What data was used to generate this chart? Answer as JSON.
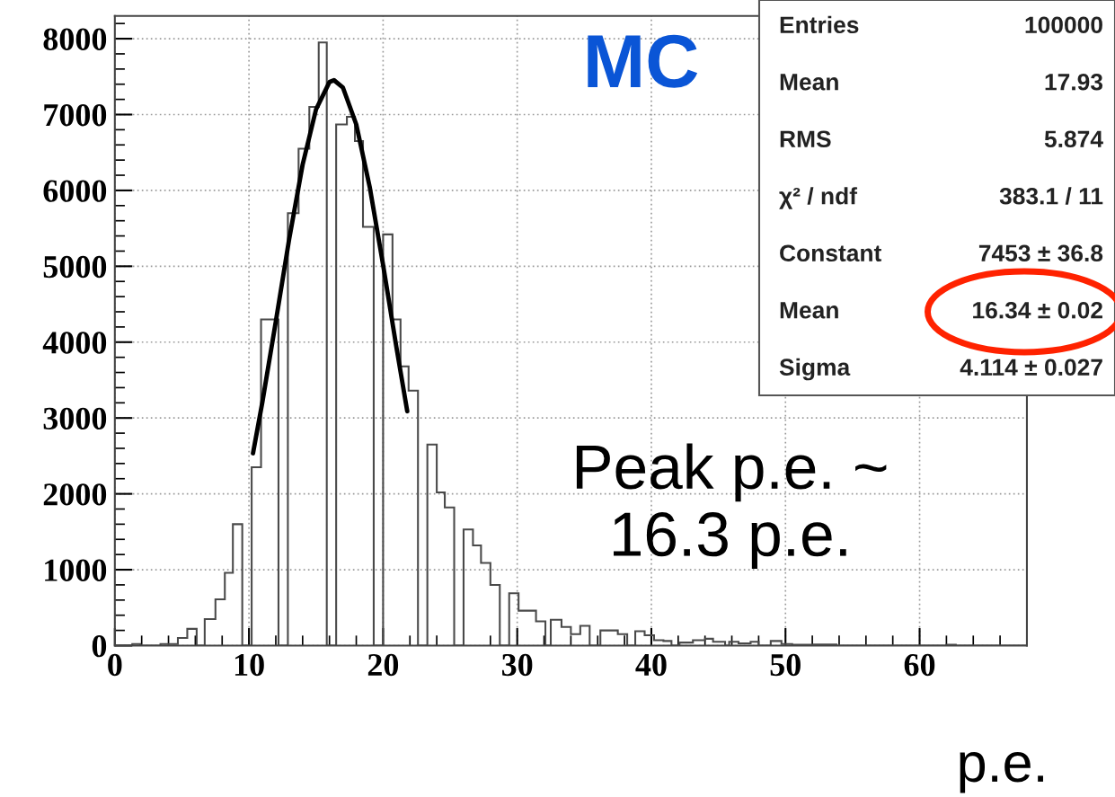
{
  "chart_data": {
    "type": "histogram",
    "bins": [
      0,
      1.3,
      1.9,
      3.4,
      4.7,
      5.4,
      6.1,
      6.7,
      7.5,
      8.2,
      8.8,
      9.5,
      10.2,
      10.9,
      12.2,
      12.9,
      13.7,
      14.5,
      15.2,
      15.8,
      16.5,
      17.3,
      17.9,
      18.5,
      19.3,
      20.0,
      20.7,
      21.3,
      21.9,
      22.6,
      23.3,
      24.0,
      24.6,
      25.3,
      26.0,
      26.7,
      27.3,
      28.0,
      28.7,
      29.4,
      30.1,
      31.4,
      32.1,
      32.5,
      33.3,
      34.0,
      34.7,
      35.4,
      36.2,
      37.5,
      38.2,
      38.8,
      39.5,
      40.2,
      40.9,
      41.5,
      42.1,
      43.1,
      44.0,
      44.6,
      45.5,
      45.8,
      46.5,
      47.4,
      48.0,
      48.9,
      49.7,
      50.5,
      52.1,
      53.8,
      62.0,
      62.7,
      68
    ],
    "values": [
      0,
      20,
      0,
      20,
      100,
      220,
      0,
      350,
      610,
      960,
      1600,
      0,
      2350,
      4300,
      0,
      5700,
      6550,
      7100,
      7950,
      0,
      6870,
      6970,
      6650,
      5520,
      0,
      5420,
      4300,
      3680,
      3360,
      0,
      2650,
      2020,
      1820,
      0,
      1530,
      1320,
      1090,
      800,
      0,
      690,
      460,
      320,
      0,
      340,
      245,
      150,
      260,
      0,
      200,
      150,
      0,
      190,
      135,
      70,
      60,
      0,
      40,
      70,
      90,
      50,
      0,
      50,
      30,
      50,
      0,
      60,
      20,
      10,
      15,
      0,
      10,
      0
    ],
    "color": "#4a4a4a",
    "series": [
      {
        "type": "line",
        "color": "#000000",
        "x": [
          10.3,
          11,
          12,
          13,
          14,
          15,
          16,
          16.34,
          17,
          18,
          19,
          20,
          21,
          21.8
        ],
        "values": [
          2535,
          3209,
          4272,
          5360,
          6340,
          7068,
          7428,
          7453,
          7358,
          6870,
          6047,
          5017,
          3924,
          3089
        ]
      }
    ],
    "xlabel": "p.e.",
    "xlim": [
      0,
      68
    ],
    "xticks": [
      0,
      10,
      20,
      30,
      40,
      50,
      60
    ],
    "ylim": [
      0,
      8300
    ],
    "yticks": [
      0,
      1000,
      2000,
      3000,
      4000,
      5000,
      6000,
      7000,
      8000
    ],
    "grid": true,
    "annotations": [
      "MC",
      "Peak p.e. ~\n16.3 p.e.",
      "Entries",
      "100000",
      "Mean",
      "17.93",
      "RMS",
      "5.874",
      "χ² / ndf",
      "383.1 / 11",
      "Constant",
      "7453 ± 36.8",
      "Mean",
      "16.34 ± 0.02",
      "Sigma",
      "4.114 ± 0.027"
    ]
  }
}
